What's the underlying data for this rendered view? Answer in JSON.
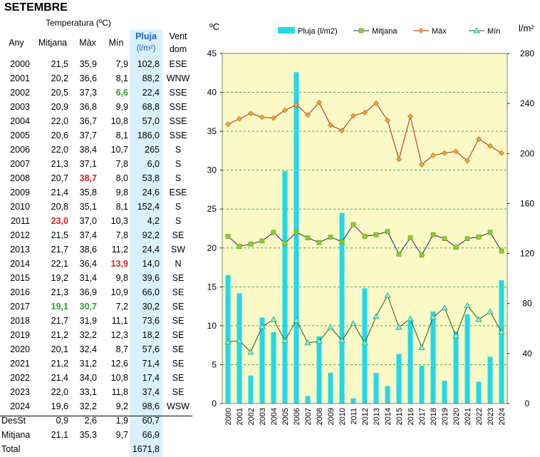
{
  "title": "SETEMBRE",
  "table": {
    "group_header": "Temperatura (ºC)",
    "headers": {
      "year": "Any",
      "mean": "Mitjana",
      "max": "Màx",
      "min": "Mín",
      "rain": "Pluja",
      "rain_unit": "(l/m²)",
      "wind": "Vent",
      "wind2": "dom"
    },
    "rows": [
      {
        "year": "2000",
        "mean": "21,5",
        "max": "35,9",
        "min": "7,9",
        "rain": "102,8",
        "wind": "ESE"
      },
      {
        "year": "2001",
        "mean": "20,2",
        "max": "36,6",
        "min": "8,1",
        "rain": "88,2",
        "wind": "WNW"
      },
      {
        "year": "2002",
        "mean": "20,5",
        "max": "37,3",
        "min": "6,6",
        "rain": "22,4",
        "wind": "SSE",
        "min_hl": "green"
      },
      {
        "year": "2003",
        "mean": "20,9",
        "max": "36,8",
        "min": "9,9",
        "rain": "68,8",
        "wind": "SSE"
      },
      {
        "year": "2004",
        "mean": "22,0",
        "max": "36,7",
        "min": "10,8",
        "rain": "57,0",
        "wind": "SSE"
      },
      {
        "year": "2005",
        "mean": "20,6",
        "max": "37,7",
        "min": "8,1",
        "rain": "186,0",
        "wind": "SSE"
      },
      {
        "year": "2006",
        "mean": "22,0",
        "max": "38,4",
        "min": "10,7",
        "rain": "265",
        "wind": "S"
      },
      {
        "year": "2007",
        "mean": "21,3",
        "max": "37,1",
        "min": "7,8",
        "rain": "6,0",
        "wind": "S"
      },
      {
        "year": "2008",
        "mean": "20,7",
        "max": "38,7",
        "min": "8,0",
        "rain": "53,8",
        "wind": "S",
        "max_hl": "red"
      },
      {
        "year": "2009",
        "mean": "21,4",
        "max": "35,8",
        "min": "9,8",
        "rain": "24,6",
        "wind": "ESE"
      },
      {
        "year": "2010",
        "mean": "20,8",
        "max": "35,1",
        "min": "8,1",
        "rain": "152,4",
        "wind": "S"
      },
      {
        "year": "2011",
        "mean": "23,0",
        "max": "37,0",
        "min": "10,3",
        "rain": "4,2",
        "wind": "S",
        "mean_hl": "red"
      },
      {
        "year": "2012",
        "mean": "21,5",
        "max": "37,4",
        "min": "7,8",
        "rain": "92,2",
        "wind": "SE"
      },
      {
        "year": "2013",
        "mean": "21,7",
        "max": "38,6",
        "min": "11,2",
        "rain": "24,4",
        "wind": "SW"
      },
      {
        "year": "2014",
        "mean": "22,1",
        "max": "36,4",
        "min": "13,9",
        "rain": "14,0",
        "wind": "N",
        "min_hl": "red"
      },
      {
        "year": "2015",
        "mean": "19,2",
        "max": "31,4",
        "min": "9,8",
        "rain": "39,6",
        "wind": "SE"
      },
      {
        "year": "2016",
        "mean": "21,3",
        "max": "36,9",
        "min": "10,9",
        "rain": "66,0",
        "wind": "SE"
      },
      {
        "year": "2017",
        "mean": "19,1",
        "max": "30,7",
        "min": "7,2",
        "rain": "30,2",
        "wind": "SE",
        "mean_hl": "green",
        "max_hl": "green"
      },
      {
        "year": "2018",
        "mean": "21,7",
        "max": "31,9",
        "min": "11,1",
        "rain": "73,6",
        "wind": "SE"
      },
      {
        "year": "2019",
        "mean": "21,2",
        "max": "32,2",
        "min": "12,3",
        "rain": "18,2",
        "wind": "SE"
      },
      {
        "year": "2020",
        "mean": "20,1",
        "max": "32,4",
        "min": "8,7",
        "rain": "57,6",
        "wind": "SE"
      },
      {
        "year": "2021",
        "mean": "21,2",
        "max": "31,2",
        "min": "12,6",
        "rain": "71,4",
        "wind": "SE"
      },
      {
        "year": "2022",
        "mean": "21,4",
        "max": "34,0",
        "min": "10,8",
        "rain": "17,4",
        "wind": "SE"
      },
      {
        "year": "2023",
        "mean": "22,0",
        "max": "33,1",
        "min": "11,8",
        "rain": "37,4",
        "wind": "SE"
      },
      {
        "year": "2024",
        "mean": "19,6",
        "max": "32,2",
        "min": "9,2",
        "rain": "98,6",
        "wind": "WSW"
      }
    ],
    "stats": [
      {
        "label": "DesSt",
        "mean": "0,9",
        "max": "2,6",
        "min": "1,9",
        "rain": "60,7"
      },
      {
        "label": "Mitjana",
        "mean": "21,1",
        "max": "35,3",
        "min": "9,7",
        "rain": "66,9"
      },
      {
        "label": "Total",
        "mean": "",
        "max": "",
        "min": "",
        "rain": "1671,8"
      }
    ],
    "colors": {
      "red": "#e4201f",
      "green": "#2e9c2e",
      "rain_bg": "#d9f1fd",
      "rain_header": "#1f5fbf"
    }
  },
  "chart_data": {
    "type": "bar+line",
    "x": [
      "2000",
      "2001",
      "2002",
      "2003",
      "2004",
      "2005",
      "2006",
      "2007",
      "2008",
      "2009",
      "2010",
      "2011",
      "2012",
      "2013",
      "2014",
      "2015",
      "2016",
      "2017",
      "2018",
      "2019",
      "2020",
      "2021",
      "2022",
      "2023",
      "2024"
    ],
    "left_axis_label": "ºC",
    "right_axis_label": "l/m²",
    "ylim_left": [
      0,
      45
    ],
    "ylim_right": [
      0,
      280
    ],
    "yticks_left": [
      "0",
      "5",
      "10",
      "15",
      "20",
      "25",
      "30",
      "35",
      "40",
      "45"
    ],
    "yticks_right": [
      "0",
      "40",
      "80",
      "120",
      "160",
      "200",
      "240",
      "280"
    ],
    "grid": true,
    "legend_position": "top",
    "plot_bg": "#fbf9c6",
    "series": [
      {
        "name": "Pluja (l/m2)",
        "kind": "bar",
        "axis": "right",
        "color": "#22d8ea",
        "values": [
          102.8,
          88.2,
          22.4,
          68.8,
          57.0,
          186.0,
          265,
          6.0,
          53.8,
          24.6,
          152.4,
          4.2,
          92.2,
          24.4,
          14.0,
          39.6,
          66.0,
          30.2,
          73.6,
          18.2,
          57.6,
          71.4,
          17.4,
          37.4,
          98.6
        ]
      },
      {
        "name": "Mitjana",
        "kind": "line",
        "axis": "left",
        "color": "#1a237e",
        "marker_color": "#8bd12a",
        "marker": "square",
        "values": [
          21.5,
          20.2,
          20.5,
          20.9,
          22.0,
          20.6,
          22.0,
          21.3,
          20.7,
          21.4,
          20.8,
          23.0,
          21.5,
          21.7,
          22.1,
          19.2,
          21.3,
          19.1,
          21.7,
          21.2,
          20.1,
          21.2,
          21.4,
          22.0,
          19.6
        ]
      },
      {
        "name": "Màx",
        "kind": "line",
        "axis": "left",
        "color": "#b71c1c",
        "marker_color": "#f5a623",
        "marker": "diamond",
        "values": [
          35.9,
          36.6,
          37.3,
          36.8,
          36.7,
          37.7,
          38.4,
          37.1,
          38.7,
          35.8,
          35.1,
          37.0,
          37.4,
          38.6,
          36.4,
          31.4,
          36.9,
          30.7,
          31.9,
          32.2,
          32.4,
          31.2,
          34.0,
          33.1,
          32.2
        ]
      },
      {
        "name": "Mín",
        "kind": "line",
        "axis": "left",
        "color": "#1b5e20",
        "marker_color": "#7ff0d8",
        "marker": "triangle",
        "values": [
          7.9,
          8.1,
          6.6,
          9.9,
          10.8,
          8.1,
          10.7,
          7.8,
          8.0,
          9.8,
          8.1,
          10.3,
          7.8,
          11.2,
          13.9,
          9.8,
          10.9,
          7.2,
          11.1,
          12.3,
          8.7,
          12.6,
          10.8,
          11.8,
          9.2
        ]
      }
    ]
  }
}
